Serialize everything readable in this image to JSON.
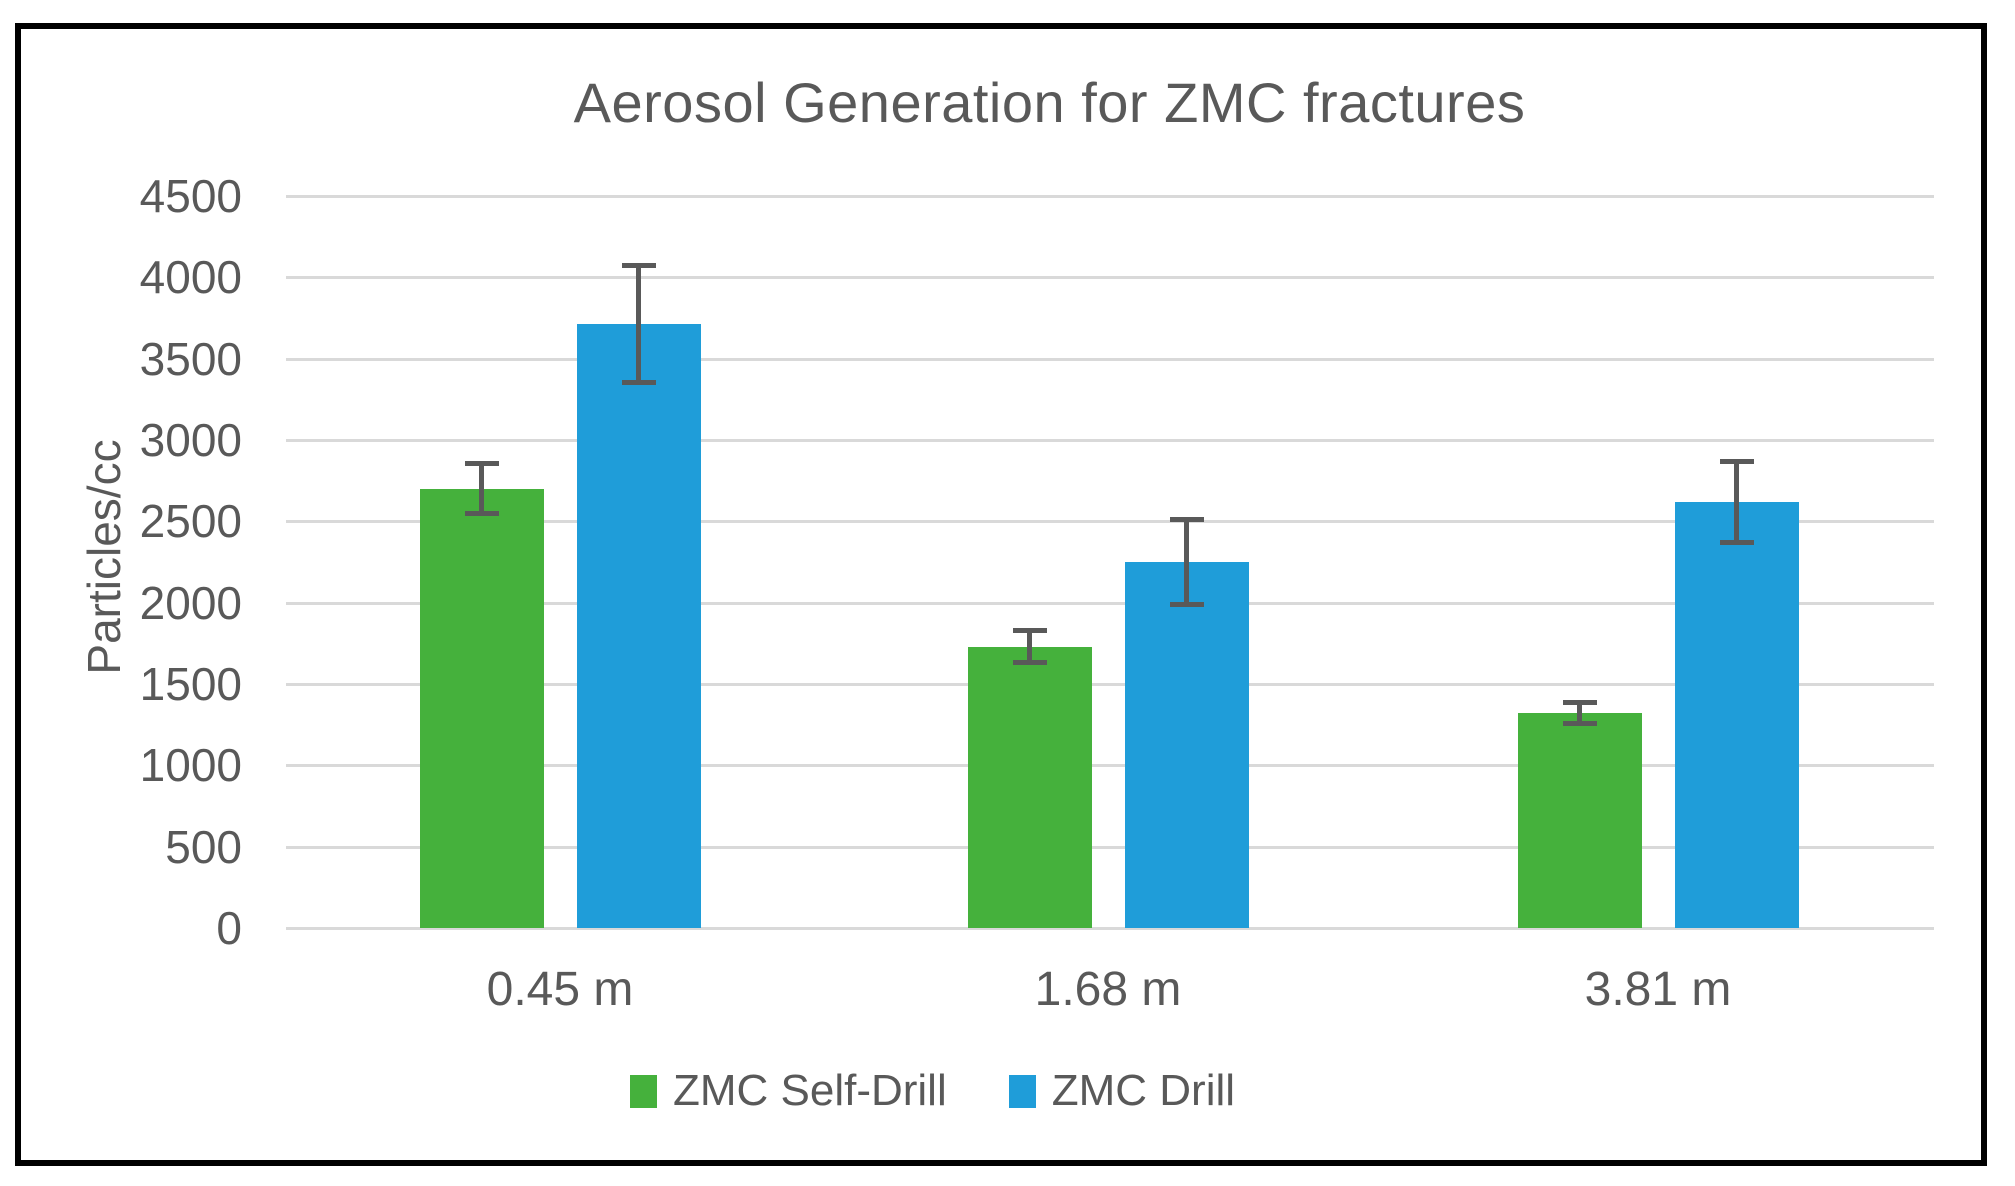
{
  "chart_data": {
    "type": "bar",
    "title": "Aerosol Generation for ZMC fractures",
    "ylabel": "Particles/cc",
    "xlabel": "",
    "categories": [
      "0.45 m",
      "1.68 m",
      "3.81 m"
    ],
    "series": [
      {
        "name": "ZMC Self-Drill",
        "color": "#45B13C",
        "values": [
          2700,
          1730,
          1320
        ],
        "error_bars": [
          170,
          115,
          80
        ]
      },
      {
        "name": "ZMC Drill",
        "color": "#1F9DD9",
        "values": [
          3715,
          2250,
          2620
        ],
        "error_bars": [
          375,
          275,
          265
        ]
      }
    ],
    "ylim": [
      0,
      4500
    ],
    "yticks": [
      0,
      500,
      1000,
      1500,
      2000,
      2500,
      3000,
      3500,
      4000,
      4500
    ],
    "grid": true,
    "legend_position": "bottom"
  },
  "colors": {
    "text": "#595959",
    "gridline": "#D9D9D9",
    "error_bar": "#595959",
    "frame_border": "#000000",
    "background": "#FFFFFF"
  }
}
